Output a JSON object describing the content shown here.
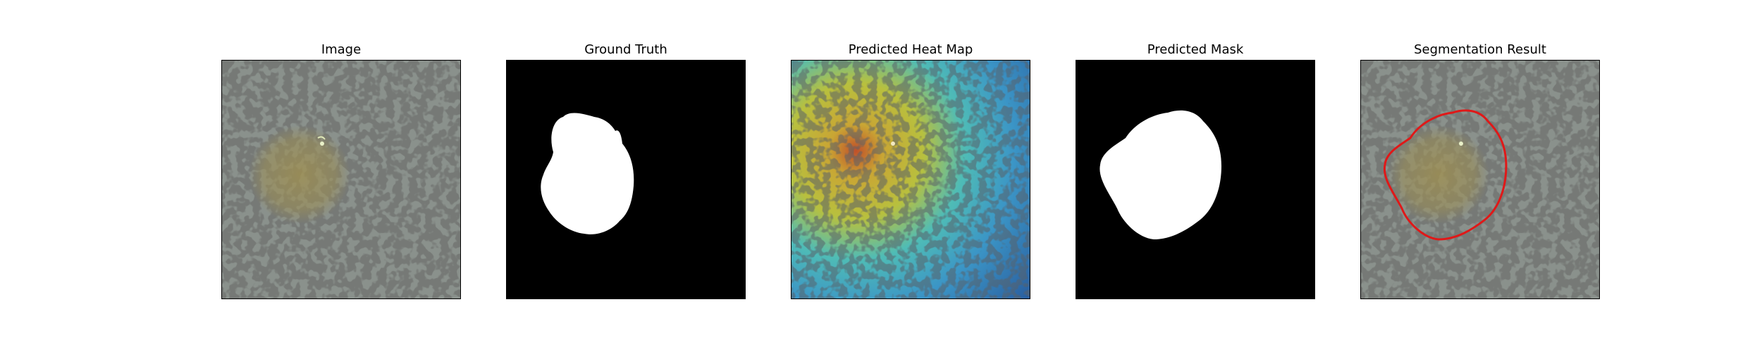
{
  "panels": [
    {
      "title": "Image",
      "icon": "skin-lesion-photo"
    },
    {
      "title": "Ground Truth",
      "icon": "binary-mask"
    },
    {
      "title": "Predicted Heat Map",
      "icon": "heatmap-overlay"
    },
    {
      "title": "Predicted Mask",
      "icon": "binary-mask"
    },
    {
      "title": "Segmentation Result",
      "icon": "contour-overlay"
    }
  ],
  "colors": {
    "background": "#ffffff",
    "mask_foreground": "#ffffff",
    "mask_background": "#000000",
    "skin_base": "#8a918c",
    "skin_spots": "#2f3230",
    "lesion_tint": "#9c8f55",
    "contour": "#e01818",
    "heat_low": "#2a5fa0",
    "heat_mid": "#3fb8c0",
    "heat_high": "#d8c23a",
    "heat_peak": "#c0502a"
  }
}
